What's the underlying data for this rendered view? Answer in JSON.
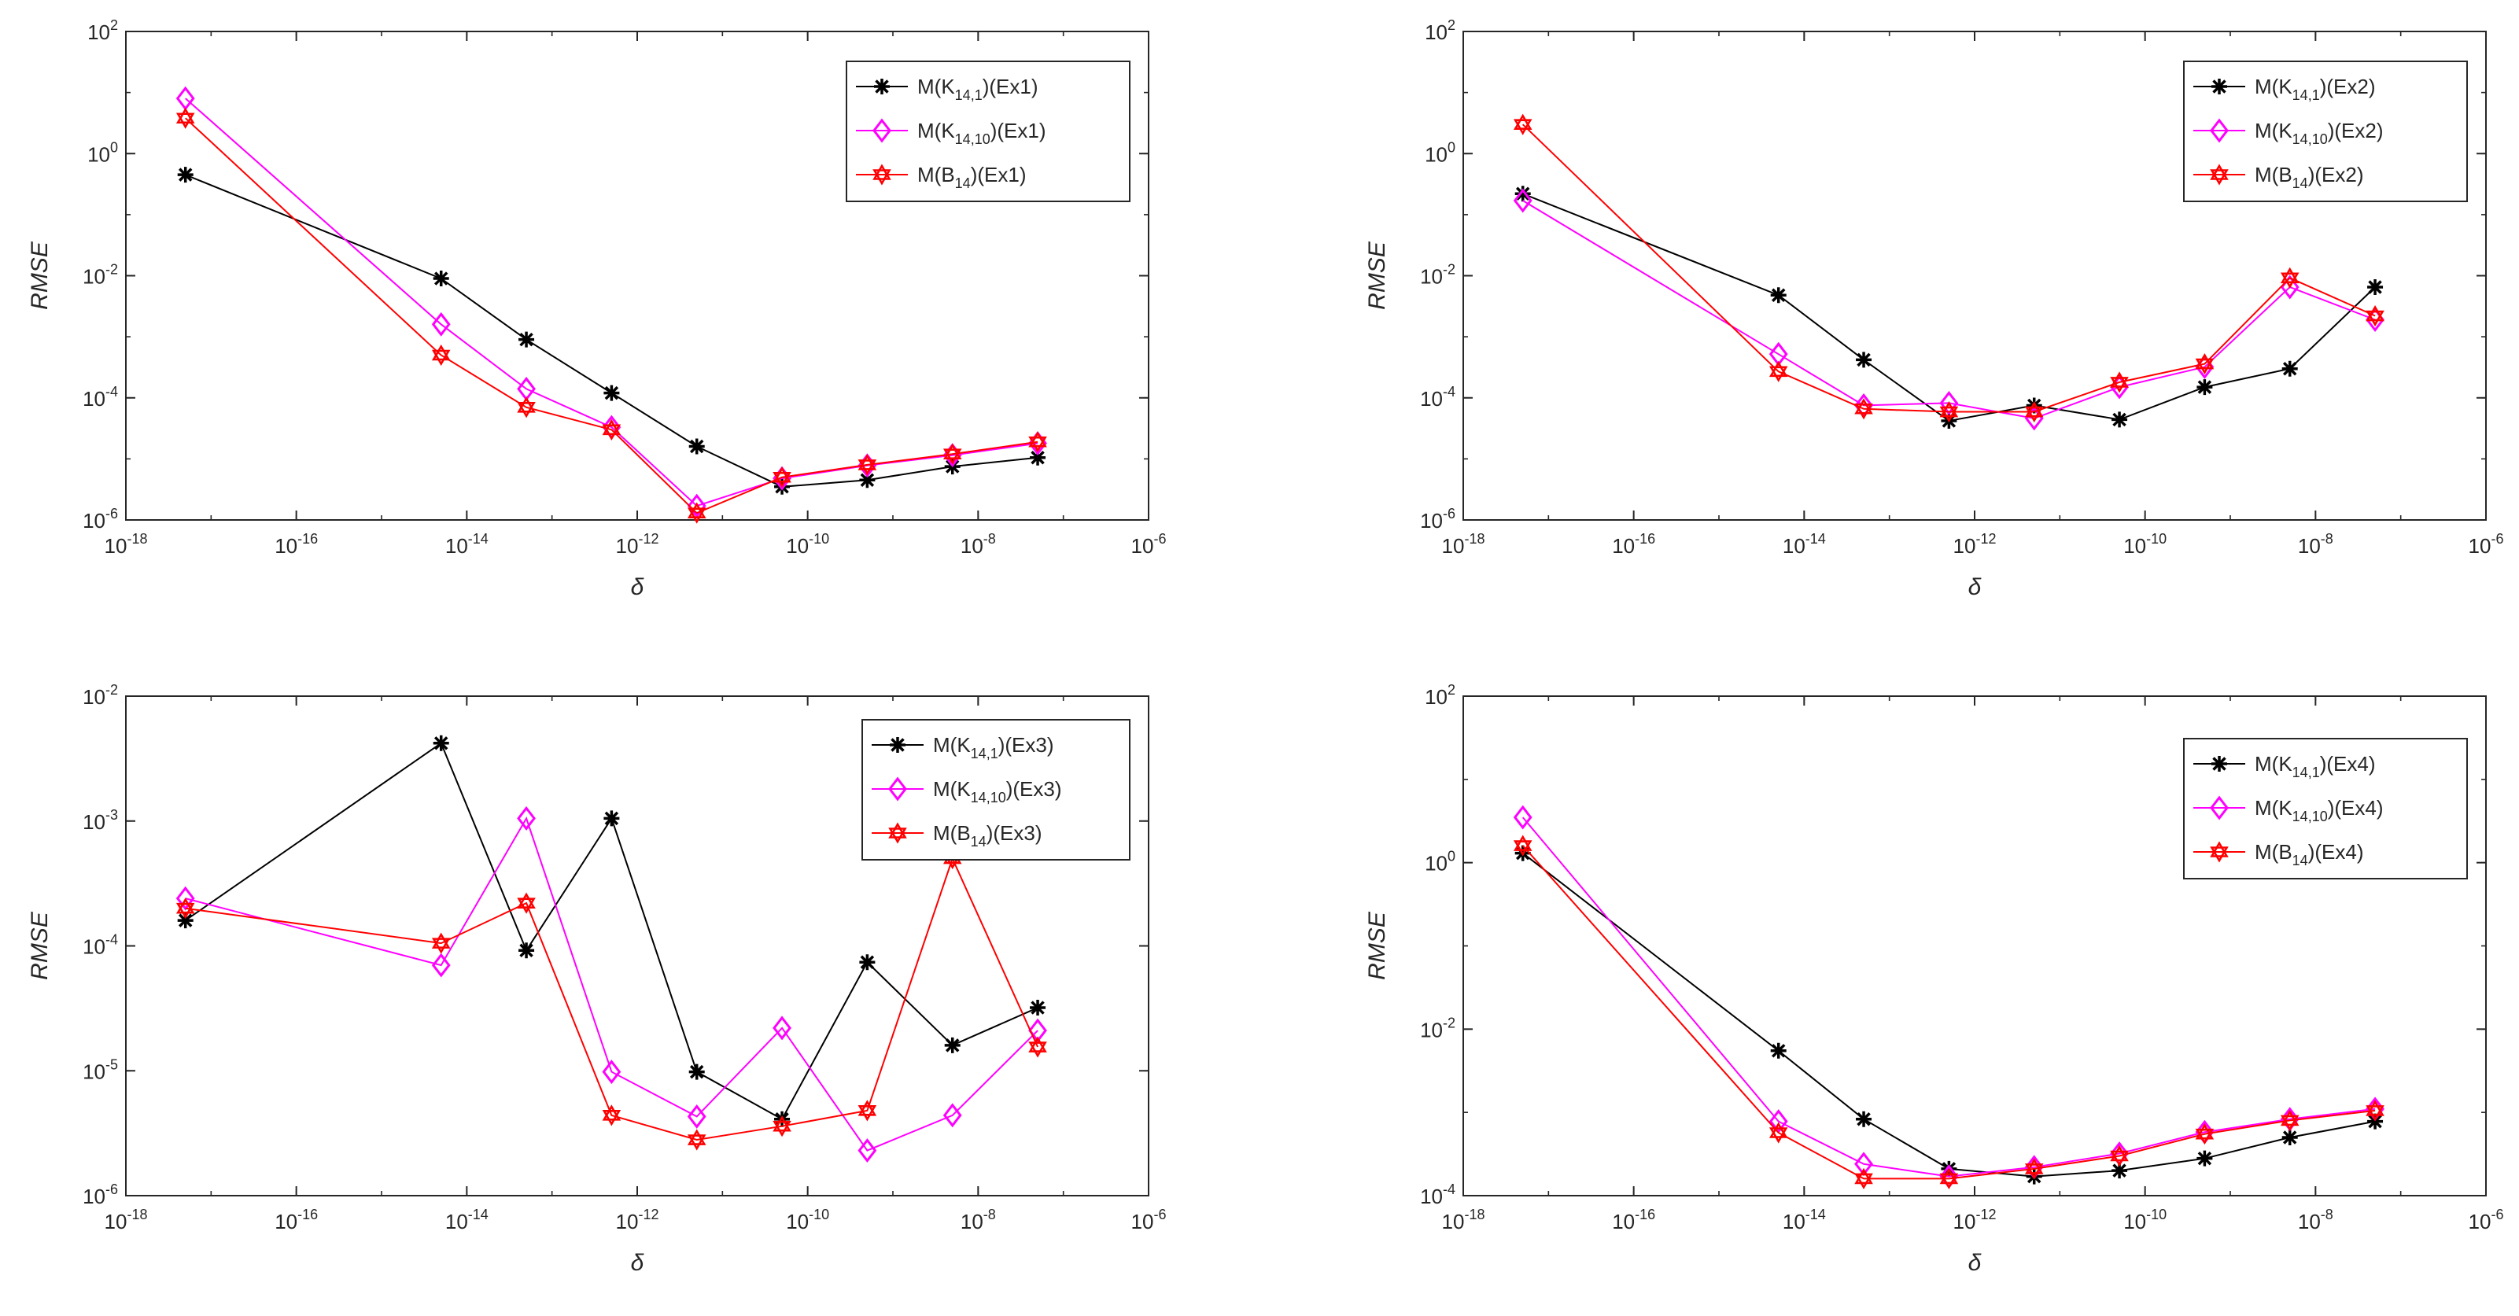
{
  "colors": {
    "black": "#000000",
    "magenta": "#ff00ff",
    "red": "#ff0000",
    "axis": "#262626"
  },
  "chart_data": [
    {
      "type": "line",
      "x_scale": "log",
      "y_scale": "log",
      "xlabel": "δ",
      "ylabel": "RMSE",
      "xlim": [
        1e-18,
        1e-06
      ],
      "ylim": [
        1e-06,
        100
      ],
      "x_ticks": [
        {
          "b": "10",
          "e": "-18"
        },
        {
          "b": "10",
          "e": "-16"
        },
        {
          "b": "10",
          "e": "-14"
        },
        {
          "b": "10",
          "e": "-12"
        },
        {
          "b": "10",
          "e": "-10"
        },
        {
          "b": "10",
          "e": "-8"
        },
        {
          "b": "10",
          "e": "-6"
        }
      ],
      "y_ticks": [
        {
          "b": "10",
          "e": "-6"
        },
        {
          "b": "10",
          "e": "-4"
        },
        {
          "b": "10",
          "e": "-2"
        },
        {
          "b": "10",
          "e": "0"
        },
        {
          "b": "10",
          "e": "2"
        }
      ],
      "legend_position": "top-right",
      "x": [
        5e-18,
        5e-15,
        5e-14,
        5e-13,
        5e-12,
        5e-11,
        5e-10,
        5e-09,
        5e-08
      ],
      "series": [
        {
          "legend": {
            "pre": "M(K",
            "sub": "14,1",
            "post": ")(Ex1)"
          },
          "color": "#000000",
          "marker": "asterisk",
          "values": [
            0.45,
            0.009,
            0.0009,
            0.00012,
            1.6e-05,
            3.5e-06,
            4.5e-06,
            7.5e-06,
            1.05e-05
          ]
        },
        {
          "legend": {
            "pre": "M(K",
            "sub": "14,10",
            "post": ")(Ex1)"
          },
          "color": "#ff00ff",
          "marker": "diamond",
          "values": [
            8,
            0.0016,
            0.00014,
            3.3e-05,
            1.7e-06,
            4.8e-06,
            7.8e-06,
            1.15e-05,
            1.8e-05
          ]
        },
        {
          "legend": {
            "pre": "M(B",
            "sub": "14",
            "post": ")(Ex1)"
          },
          "color": "#ff0000",
          "marker": "hexagram",
          "values": [
            3.8,
            0.0005,
            7e-05,
            3e-05,
            1.3e-06,
            5e-06,
            8e-06,
            1.2e-05,
            1.9e-05
          ]
        }
      ]
    },
    {
      "type": "line",
      "x_scale": "log",
      "y_scale": "log",
      "xlabel": "δ",
      "ylabel": "RMSE",
      "xlim": [
        1e-18,
        1e-06
      ],
      "ylim": [
        1e-06,
        100
      ],
      "x_ticks": [
        {
          "b": "10",
          "e": "-18"
        },
        {
          "b": "10",
          "e": "-16"
        },
        {
          "b": "10",
          "e": "-14"
        },
        {
          "b": "10",
          "e": "-12"
        },
        {
          "b": "10",
          "e": "-10"
        },
        {
          "b": "10",
          "e": "-8"
        },
        {
          "b": "10",
          "e": "-6"
        }
      ],
      "y_ticks": [
        {
          "b": "10",
          "e": "-6"
        },
        {
          "b": "10",
          "e": "-4"
        },
        {
          "b": "10",
          "e": "-2"
        },
        {
          "b": "10",
          "e": "0"
        },
        {
          "b": "10",
          "e": "2"
        }
      ],
      "legend_position": "top-right",
      "x": [
        5e-18,
        5e-15,
        5e-14,
        5e-13,
        5e-12,
        5e-11,
        5e-10,
        5e-09,
        5e-08
      ],
      "series": [
        {
          "legend": {
            "pre": "M(K",
            "sub": "14,1",
            "post": ")(Ex2)"
          },
          "color": "#000000",
          "marker": "asterisk",
          "values": [
            0.22,
            0.0048,
            0.00042,
            4.2e-05,
            7.5e-05,
            4.4e-05,
            0.00015,
            0.0003,
            0.0065
          ]
        },
        {
          "legend": {
            "pre": "M(K",
            "sub": "14,10",
            "post": ")(Ex2)"
          },
          "color": "#ff00ff",
          "marker": "diamond",
          "values": [
            0.17,
            0.00052,
            7.5e-05,
            8.2e-05,
            4.6e-05,
            0.00015,
            0.00032,
            0.0065,
            0.0019
          ]
        },
        {
          "legend": {
            "pre": "M(B",
            "sub": "14",
            "post": ")(Ex2)"
          },
          "color": "#ff0000",
          "marker": "hexagram",
          "values": [
            3.0,
            0.00027,
            6.6e-05,
            5.9e-05,
            5.9e-05,
            0.00018,
            0.00036,
            0.0092,
            0.0022
          ]
        }
      ]
    },
    {
      "type": "line",
      "x_scale": "log",
      "y_scale": "log",
      "xlabel": "δ",
      "ylabel": "RMSE",
      "xlim": [
        1e-18,
        1e-06
      ],
      "ylim": [
        1e-06,
        0.01
      ],
      "x_ticks": [
        {
          "b": "10",
          "e": "-18"
        },
        {
          "b": "10",
          "e": "-16"
        },
        {
          "b": "10",
          "e": "-14"
        },
        {
          "b": "10",
          "e": "-12"
        },
        {
          "b": "10",
          "e": "-10"
        },
        {
          "b": "10",
          "e": "-8"
        },
        {
          "b": "10",
          "e": "-6"
        }
      ],
      "y_ticks": [
        {
          "b": "10",
          "e": "-6"
        },
        {
          "b": "10",
          "e": "-5"
        },
        {
          "b": "10",
          "e": "-4"
        },
        {
          "b": "10",
          "e": "-3"
        },
        {
          "b": "10",
          "e": "-2"
        }
      ],
      "legend_position": "top-right",
      "x": [
        5e-18,
        5e-15,
        5e-14,
        5e-13,
        5e-12,
        5e-11,
        5e-10,
        5e-09,
        5e-08
      ],
      "series": [
        {
          "legend": {
            "pre": "M(K",
            "sub": "14,1",
            "post": ")(Ex3)"
          },
          "color": "#000000",
          "marker": "asterisk",
          "values": [
            0.00016,
            0.0042,
            9.2e-05,
            0.00105,
            9.8e-06,
            4.1e-06,
            7.4e-05,
            1.6e-05,
            3.2e-05
          ]
        },
        {
          "legend": {
            "pre": "M(K",
            "sub": "14,10",
            "post": ")(Ex3)"
          },
          "color": "#ff00ff",
          "marker": "diamond",
          "values": [
            0.00024,
            7e-05,
            0.00105,
            9.8e-06,
            4.3e-06,
            2.2e-05,
            2.3e-06,
            4.4e-06,
            2.1e-05
          ]
        },
        {
          "legend": {
            "pre": "M(B",
            "sub": "14",
            "post": ")(Ex3)"
          },
          "color": "#ff0000",
          "marker": "hexagram",
          "values": [
            0.0002,
            0.000105,
            0.00022,
            4.4e-06,
            2.8e-06,
            3.6e-06,
            4.8e-06,
            0.0005,
            1.55e-05
          ]
        }
      ]
    },
    {
      "type": "line",
      "x_scale": "log",
      "y_scale": "log",
      "xlabel": "δ",
      "ylabel": "RMSE",
      "xlim": [
        1e-18,
        1e-06
      ],
      "ylim": [
        0.0001,
        100
      ],
      "x_ticks": [
        {
          "b": "10",
          "e": "-18"
        },
        {
          "b": "10",
          "e": "-16"
        },
        {
          "b": "10",
          "e": "-14"
        },
        {
          "b": "10",
          "e": "-12"
        },
        {
          "b": "10",
          "e": "-10"
        },
        {
          "b": "10",
          "e": "-8"
        },
        {
          "b": "10",
          "e": "-6"
        }
      ],
      "y_ticks": [
        {
          "b": "10",
          "e": "-4"
        },
        {
          "b": "10",
          "e": "-2"
        },
        {
          "b": "10",
          "e": "0"
        },
        {
          "b": "10",
          "e": "2"
        }
      ],
      "legend_position": "top-right",
      "x": [
        5e-18,
        5e-15,
        5e-14,
        5e-13,
        5e-12,
        5e-11,
        5e-10,
        5e-09,
        5e-08
      ],
      "series": [
        {
          "legend": {
            "pre": "M(K",
            "sub": "14,1",
            "post": ")(Ex4)"
          },
          "color": "#000000",
          "marker": "asterisk",
          "values": [
            1.3,
            0.0055,
            0.00083,
            0.00021,
            0.00017,
            0.0002,
            0.00028,
            0.0005,
            0.00078
          ]
        },
        {
          "legend": {
            "pre": "M(K",
            "sub": "14,10",
            "post": ")(Ex4)"
          },
          "color": "#ff00ff",
          "marker": "diamond",
          "values": [
            3.5,
            0.00078,
            0.00024,
            0.00017,
            0.00022,
            0.00032,
            0.00058,
            0.00083,
            0.0011
          ]
        },
        {
          "legend": {
            "pre": "M(B",
            "sub": "14",
            "post": ")(Ex4)"
          },
          "color": "#ff0000",
          "marker": "hexagram",
          "values": [
            1.6,
            0.00057,
            0.00016,
            0.00016,
            0.00021,
            0.0003,
            0.00055,
            0.0008,
            0.00105
          ]
        }
      ]
    }
  ]
}
